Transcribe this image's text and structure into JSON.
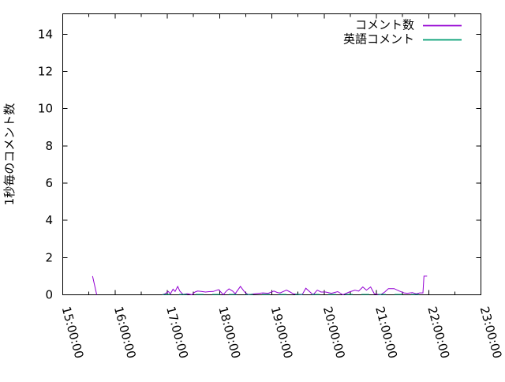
{
  "figure": {
    "background": "#ffffff",
    "kind": "gnuplot line chart"
  },
  "chart_data": {
    "type": "line",
    "title": "",
    "xlabel": "",
    "ylabel": "1秒毎のコメント数",
    "x_tick_labels": [
      "15:00:00",
      "16:00:00",
      "17:00:00",
      "18:00:00",
      "19:00:00",
      "20:00:00",
      "21:00:00",
      "22:00:00",
      "23:00:00"
    ],
    "x_tick_hours": [
      15,
      16,
      17,
      18,
      19,
      20,
      21,
      22,
      23
    ],
    "x_minor_tick_hours": [
      15.5,
      16.5,
      17.5,
      18.5,
      19.5,
      20.5,
      21.5,
      22.5
    ],
    "x_range_hours": [
      15,
      23
    ],
    "y_ticks": [
      0,
      2,
      4,
      6,
      8,
      10,
      12,
      14
    ],
    "ylim": [
      0,
      15.1
    ],
    "grid": false,
    "legend_position": "top-right-inside",
    "axis_color": "#000000",
    "series": [
      {
        "name": "コメント数",
        "key": "comments",
        "color": "#9400d3",
        "segments": [
          [
            [
              15.57,
              1
            ],
            [
              15.65,
              0
            ]
          ],
          [
            [
              16.91,
              0
            ],
            [
              16.96,
              0.06
            ],
            [
              17.02,
              0.18
            ],
            [
              17.06,
              0.05
            ],
            [
              17.11,
              0.3
            ],
            [
              17.15,
              0.18
            ],
            [
              17.2,
              0.45
            ],
            [
              17.24,
              0.2
            ],
            [
              17.3,
              0.02
            ],
            [
              17.39,
              0.06
            ],
            [
              17.47,
              0
            ],
            [
              17.53,
              0.15
            ],
            [
              17.58,
              0.2
            ],
            [
              17.65,
              0.18
            ],
            [
              17.73,
              0.15
            ],
            [
              17.8,
              0.17
            ],
            [
              17.88,
              0.18
            ],
            [
              17.98,
              0.28
            ],
            [
              18.04,
              0.1
            ],
            [
              18.07,
              0
            ],
            [
              18.13,
              0.2
            ],
            [
              18.18,
              0.32
            ],
            [
              18.25,
              0.2
            ],
            [
              18.3,
              0.06
            ],
            [
              18.4,
              0.45
            ],
            [
              18.48,
              0.15
            ],
            [
              18.55,
              0
            ],
            [
              18.66,
              0.05
            ],
            [
              18.83,
              0.1
            ],
            [
              18.93,
              0.08
            ],
            [
              19.04,
              0.2
            ],
            [
              19.11,
              0.12
            ],
            [
              19.16,
              0.1
            ],
            [
              19.28,
              0.25
            ],
            [
              19.35,
              0.15
            ],
            [
              19.41,
              0.05
            ],
            [
              19.5,
              0.02
            ],
            [
              19.58,
              0
            ],
            [
              19.65,
              0.35
            ],
            [
              19.73,
              0.15
            ],
            [
              19.79,
              0
            ],
            [
              19.87,
              0.25
            ],
            [
              19.94,
              0.15
            ],
            [
              20.03,
              0.15
            ],
            [
              20.14,
              0.08
            ],
            [
              20.26,
              0.17
            ],
            [
              20.36,
              0
            ],
            [
              20.48,
              0.15
            ],
            [
              20.59,
              0.25
            ],
            [
              20.66,
              0.2
            ],
            [
              20.74,
              0.42
            ],
            [
              20.81,
              0.25
            ],
            [
              20.89,
              0.42
            ],
            [
              20.96,
              0.05
            ],
            [
              21.08,
              0
            ],
            [
              21.16,
              0.15
            ],
            [
              21.23,
              0.33
            ],
            [
              21.34,
              0.33
            ],
            [
              21.44,
              0.2
            ],
            [
              21.53,
              0.1
            ],
            [
              21.59,
              0.08
            ],
            [
              21.69,
              0.12
            ],
            [
              21.76,
              0.05
            ],
            [
              21.83,
              0.1
            ],
            [
              21.89,
              0.1
            ],
            [
              21.91,
              1
            ],
            [
              21.97,
              1
            ]
          ]
        ]
      },
      {
        "name": "英語コメント",
        "key": "english-comments",
        "color": "#009e73",
        "dash": "10 11",
        "segments": [
          [
            [
              16.91,
              0.02
            ],
            [
              21.97,
              0.02
            ]
          ]
        ]
      }
    ]
  }
}
